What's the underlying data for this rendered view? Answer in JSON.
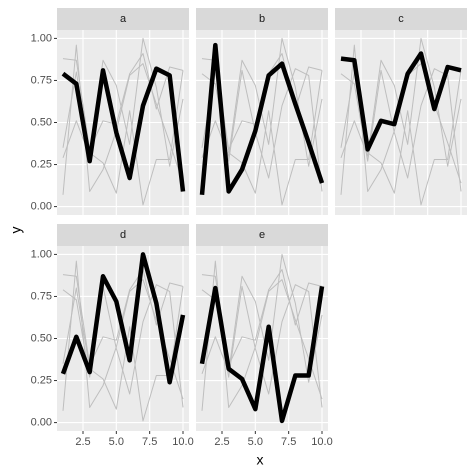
{
  "chart_data": {
    "type": "line",
    "x_label": "x",
    "y_label": "y",
    "x": [
      1,
      2,
      3,
      4,
      5,
      6,
      7,
      8,
      9,
      10
    ],
    "series": [
      {
        "name": "a",
        "values": [
          0.79,
          0.73,
          0.27,
          0.81,
          0.44,
          0.17,
          0.6,
          0.82,
          0.78,
          0.09
        ]
      },
      {
        "name": "b",
        "values": [
          0.07,
          0.96,
          0.09,
          0.22,
          0.45,
          0.78,
          0.85,
          0.61,
          0.38,
          0.14
        ]
      },
      {
        "name": "c",
        "values": [
          0.88,
          0.87,
          0.34,
          0.51,
          0.49,
          0.79,
          0.91,
          0.58,
          0.83,
          0.81
        ]
      },
      {
        "name": "d",
        "values": [
          0.29,
          0.51,
          0.3,
          0.87,
          0.72,
          0.37,
          1.0,
          0.71,
          0.24,
          0.64
        ]
      },
      {
        "name": "e",
        "values": [
          0.35,
          0.8,
          0.32,
          0.26,
          0.08,
          0.57,
          0.01,
          0.28,
          0.28,
          0.81
        ]
      }
    ],
    "highlight_color": "#000000",
    "other_color": "#BEBEBE",
    "xlim": [
      0.55,
      10.45
    ],
    "ylim": [
      -0.05,
      1.05
    ],
    "xticks": [
      2.5,
      {
        "value": 5,
        "label": "5.0"
      },
      7.5,
      {
        "value": 10,
        "label": "10.0"
      }
    ],
    "yticks": [
      {
        "value": 0,
        "label": "0.00"
      },
      {
        "value": 0.25,
        "label": "0.25"
      },
      {
        "value": 0.5,
        "label": "0.50"
      },
      {
        "value": 0.75,
        "label": "0.75"
      },
      {
        "value": 1,
        "label": "1.00"
      }
    ],
    "grid": true,
    "ncol": 3
  }
}
